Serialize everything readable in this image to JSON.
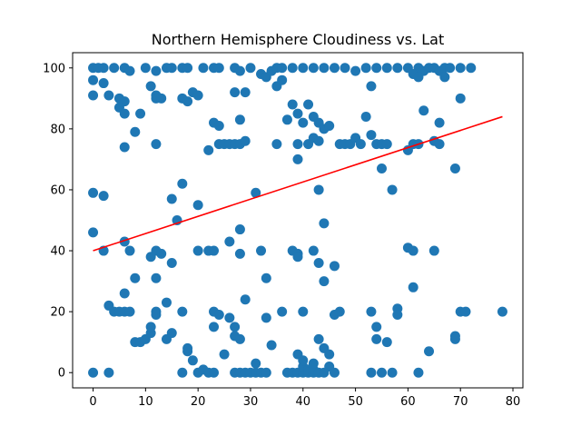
{
  "chart_data": {
    "type": "scatter",
    "title": "Northern Hemisphere Cloudiness vs. Lat",
    "xlabel": "",
    "ylabel": "",
    "xlim": [
      -3.9,
      81.9
    ],
    "ylim": [
      -5,
      105
    ],
    "xticks": [
      "0",
      "10",
      "20",
      "30",
      "40",
      "50",
      "60",
      "70",
      "80"
    ],
    "yticks": [
      "0",
      "20",
      "40",
      "60",
      "80",
      "100"
    ],
    "xtick_values": [
      0,
      10,
      20,
      30,
      40,
      50,
      60,
      70,
      80
    ],
    "ytick_values": [
      0,
      20,
      40,
      60,
      80,
      100
    ],
    "grid": false,
    "point_color": "#1f77b4",
    "line_color": "#ff0000",
    "regression": {
      "x": [
        0,
        78
      ],
      "y": [
        40,
        84
      ]
    },
    "points": [
      [
        0,
        100
      ],
      [
        1,
        100
      ],
      [
        2,
        100
      ],
      [
        4,
        100
      ],
      [
        6,
        100
      ],
      [
        7,
        99
      ],
      [
        10,
        100
      ],
      [
        12,
        99
      ],
      [
        14,
        100
      ],
      [
        15,
        100
      ],
      [
        17,
        100
      ],
      [
        18,
        100
      ],
      [
        21,
        100
      ],
      [
        23,
        100
      ],
      [
        24,
        100
      ],
      [
        27,
        100
      ],
      [
        28,
        99
      ],
      [
        30,
        100
      ],
      [
        32,
        98
      ],
      [
        0,
        96
      ],
      [
        0,
        91
      ],
      [
        2,
        95
      ],
      [
        3,
        91
      ],
      [
        5,
        90
      ],
      [
        6,
        89
      ],
      [
        5,
        87
      ],
      [
        6,
        85
      ],
      [
        8,
        79
      ],
      [
        9,
        85
      ],
      [
        11,
        94
      ],
      [
        12,
        91
      ],
      [
        12,
        90
      ],
      [
        13,
        90
      ],
      [
        17,
        90
      ],
      [
        18,
        89
      ],
      [
        19,
        92
      ],
      [
        20,
        91
      ],
      [
        23,
        82
      ],
      [
        24,
        81
      ],
      [
        22,
        73
      ],
      [
        27,
        92
      ],
      [
        28,
        83
      ],
      [
        29,
        92
      ],
      [
        6,
        74
      ],
      [
        12,
        75
      ],
      [
        24,
        75
      ],
      [
        25,
        75
      ],
      [
        26,
        75
      ],
      [
        27,
        75
      ],
      [
        28,
        75
      ],
      [
        29,
        76
      ],
      [
        33,
        97
      ],
      [
        34,
        99
      ],
      [
        35,
        100
      ],
      [
        36,
        100
      ],
      [
        35,
        94
      ],
      [
        36,
        96
      ],
      [
        37,
        83
      ],
      [
        38,
        88
      ],
      [
        39,
        85
      ],
      [
        40,
        82
      ],
      [
        41,
        75
      ],
      [
        39,
        70
      ],
      [
        41,
        88
      ],
      [
        42,
        84
      ],
      [
        43,
        82
      ],
      [
        44,
        80
      ],
      [
        45,
        81
      ],
      [
        42,
        77
      ],
      [
        43,
        76
      ],
      [
        35,
        75
      ],
      [
        39,
        75
      ],
      [
        38,
        100
      ],
      [
        40,
        100
      ],
      [
        42,
        100
      ],
      [
        44,
        100
      ],
      [
        46,
        100
      ],
      [
        48,
        100
      ],
      [
        50,
        99
      ],
      [
        52,
        100
      ],
      [
        54,
        100
      ],
      [
        56,
        100
      ],
      [
        58,
        100
      ],
      [
        60,
        100
      ],
      [
        62,
        100
      ],
      [
        63,
        99
      ],
      [
        64,
        100
      ],
      [
        65,
        100
      ],
      [
        66,
        99
      ],
      [
        67,
        100
      ],
      [
        68,
        100
      ],
      [
        70,
        100
      ],
      [
        72,
        100
      ],
      [
        61,
        98
      ],
      [
        62,
        97
      ],
      [
        67,
        97
      ],
      [
        47,
        75
      ],
      [
        48,
        75
      ],
      [
        49,
        75
      ],
      [
        50,
        77
      ],
      [
        51,
        75
      ],
      [
        52,
        84
      ],
      [
        53,
        78
      ],
      [
        54,
        75
      ],
      [
        55,
        75
      ],
      [
        56,
        75
      ],
      [
        53,
        94
      ],
      [
        55,
        67
      ],
      [
        57,
        60
      ],
      [
        60,
        73
      ],
      [
        61,
        75
      ],
      [
        62,
        75
      ],
      [
        63,
        86
      ],
      [
        65,
        76
      ],
      [
        66,
        75
      ],
      [
        66,
        82
      ],
      [
        70,
        90
      ],
      [
        69,
        67
      ],
      [
        0,
        59
      ],
      [
        0,
        46
      ],
      [
        2,
        58
      ],
      [
        2,
        40
      ],
      [
        6,
        43
      ],
      [
        11,
        38
      ],
      [
        12,
        40
      ],
      [
        13,
        39
      ],
      [
        15,
        36
      ],
      [
        15,
        57
      ],
      [
        16,
        50
      ],
      [
        17,
        62
      ],
      [
        20,
        55
      ],
      [
        20,
        40
      ],
      [
        22,
        40
      ],
      [
        23,
        40
      ],
      [
        26,
        43
      ],
      [
        28,
        47
      ],
      [
        28,
        39
      ],
      [
        31,
        59
      ],
      [
        32,
        40
      ],
      [
        33,
        31
      ],
      [
        38,
        40
      ],
      [
        39,
        39
      ],
      [
        39,
        38
      ],
      [
        42,
        40
      ],
      [
        43,
        36
      ],
      [
        44,
        49
      ],
      [
        44,
        30
      ],
      [
        46,
        35
      ],
      [
        43,
        60
      ],
      [
        60,
        41
      ],
      [
        61,
        40
      ],
      [
        61,
        28
      ],
      [
        65,
        40
      ],
      [
        3,
        22
      ],
      [
        4,
        20
      ],
      [
        5,
        20
      ],
      [
        6,
        20
      ],
      [
        6,
        26
      ],
      [
        7,
        20
      ],
      [
        7,
        40
      ],
      [
        8,
        31
      ],
      [
        12,
        31
      ],
      [
        12,
        20
      ],
      [
        12,
        19
      ],
      [
        14,
        23
      ],
      [
        17,
        20
      ],
      [
        23,
        20
      ],
      [
        24,
        19
      ],
      [
        26,
        18
      ],
      [
        27,
        15
      ],
      [
        29,
        24
      ],
      [
        33,
        18
      ],
      [
        34,
        9
      ],
      [
        36,
        20
      ],
      [
        40,
        20
      ],
      [
        46,
        19
      ],
      [
        47,
        20
      ],
      [
        53,
        20
      ],
      [
        54,
        15
      ],
      [
        58,
        21
      ],
      [
        58,
        19
      ],
      [
        70,
        20
      ],
      [
        71,
        20
      ],
      [
        78,
        20
      ],
      [
        69,
        12
      ],
      [
        69,
        11
      ],
      [
        54,
        11
      ],
      [
        56,
        10
      ],
      [
        0,
        0
      ],
      [
        3,
        0
      ],
      [
        8,
        10
      ],
      [
        9,
        10
      ],
      [
        10,
        11
      ],
      [
        11,
        13
      ],
      [
        11,
        15
      ],
      [
        14,
        11
      ],
      [
        15,
        13
      ],
      [
        17,
        0
      ],
      [
        18,
        7
      ],
      [
        18,
        8
      ],
      [
        19,
        4
      ],
      [
        20,
        0
      ],
      [
        21,
        1
      ],
      [
        22,
        0
      ],
      [
        23,
        0
      ],
      [
        23,
        15
      ],
      [
        25,
        6
      ],
      [
        27,
        0
      ],
      [
        27,
        12
      ],
      [
        28,
        0
      ],
      [
        28,
        11
      ],
      [
        29,
        0
      ],
      [
        30,
        0
      ],
      [
        31,
        0
      ],
      [
        31,
        3
      ],
      [
        32,
        0
      ],
      [
        33,
        0
      ],
      [
        37,
        0
      ],
      [
        38,
        0
      ],
      [
        39,
        0
      ],
      [
        39,
        6
      ],
      [
        40,
        0
      ],
      [
        40,
        2
      ],
      [
        41,
        1
      ],
      [
        41,
        0
      ],
      [
        42,
        0
      ],
      [
        42,
        1
      ],
      [
        42,
        3
      ],
      [
        43,
        0
      ],
      [
        43,
        11
      ],
      [
        44,
        8
      ],
      [
        45,
        6
      ],
      [
        45,
        2
      ],
      [
        46,
        0
      ],
      [
        53,
        0
      ],
      [
        55,
        0
      ],
      [
        57,
        0
      ],
      [
        62,
        0
      ],
      [
        64,
        7
      ],
      [
        40,
        4
      ],
      [
        44,
        0
      ]
    ]
  }
}
